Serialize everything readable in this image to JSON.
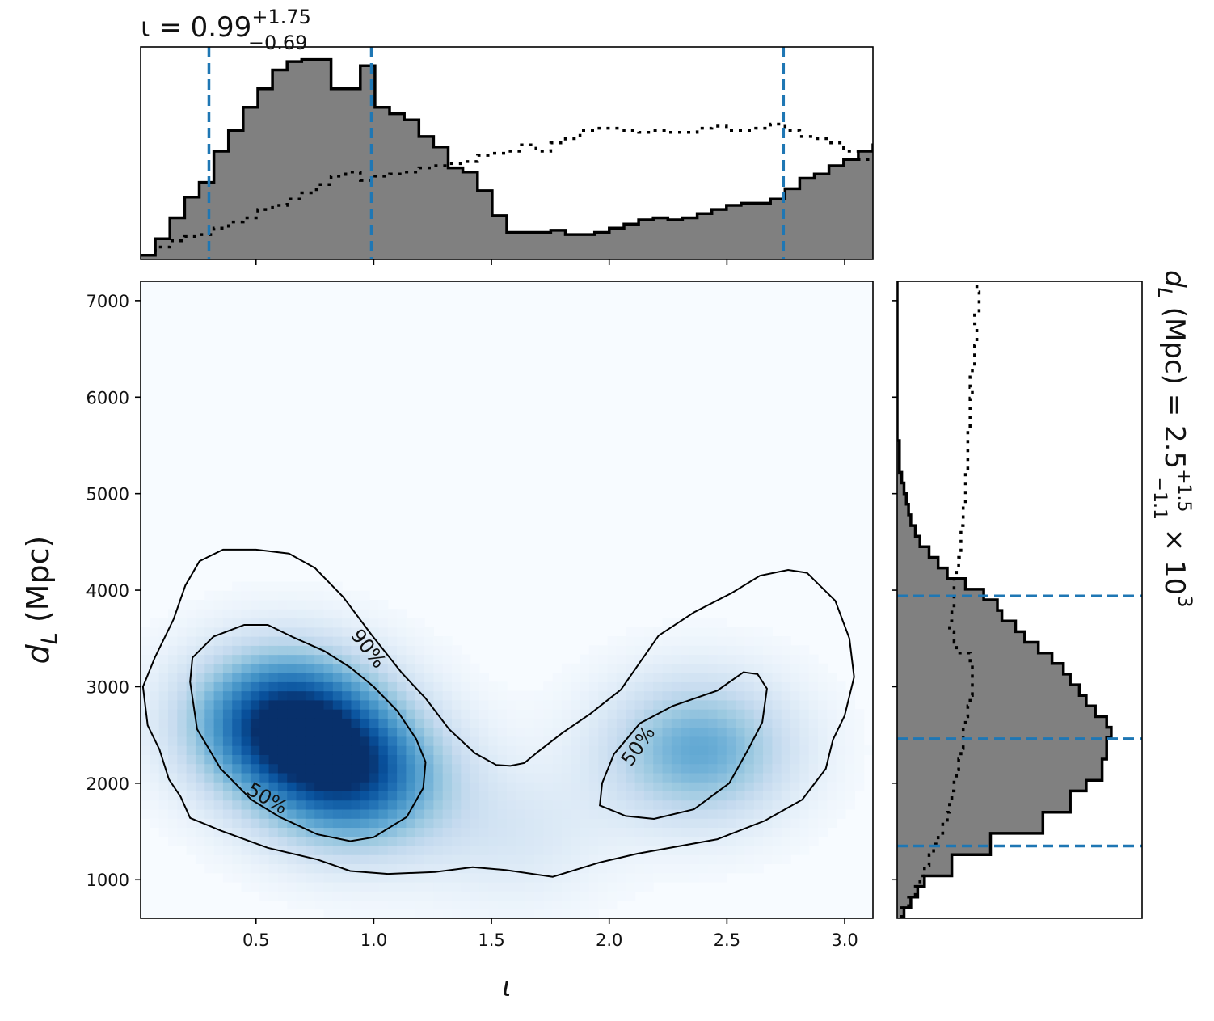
{
  "chart_data": [
    {
      "type": "heatmap",
      "xlabel": "ι",
      "ylabel": "d",
      "ylabel_sub": "L",
      "ylabel_unit": "(Mpc)",
      "xlim": [
        0.01,
        3.12
      ],
      "ylim": [
        600,
        7200
      ],
      "xticks": [
        "0.5",
        "1.0",
        "1.5",
        "2.0",
        "2.5",
        "3.0"
      ],
      "yticks": [
        "1000",
        "2000",
        "3000",
        "4000",
        "5000",
        "6000",
        "7000"
      ],
      "colormap": "Blues",
      "density_modes": [
        {
          "x": 0.62,
          "y": 2650,
          "weight": 1.0
        },
        {
          "x": 0.92,
          "y": 2050,
          "weight": 0.8
        },
        {
          "x": 2.38,
          "y": 2350,
          "weight": 0.55
        },
        {
          "x": 1.6,
          "y": 1450,
          "weight": 0.15
        }
      ],
      "contours": [
        {
          "label": "90%",
          "label_at": [
            0.98,
            3400
          ],
          "paths": [
            [
              [
                0.02,
                3000
              ],
              [
                0.07,
                3300
              ],
              [
                0.15,
                3700
              ],
              [
                0.2,
                4050
              ],
              [
                0.26,
                4300
              ],
              [
                0.36,
                4420
              ],
              [
                0.5,
                4420
              ],
              [
                0.64,
                4380
              ],
              [
                0.75,
                4230
              ],
              [
                0.87,
                3930
              ],
              [
                0.99,
                3540
              ],
              [
                1.12,
                3140
              ],
              [
                1.22,
                2880
              ],
              [
                1.32,
                2560
              ],
              [
                1.43,
                2310
              ],
              [
                1.52,
                2190
              ],
              [
                1.58,
                2180
              ],
              [
                1.64,
                2210
              ],
              [
                1.7,
                2330
              ],
              [
                1.8,
                2520
              ],
              [
                1.92,
                2720
              ],
              [
                2.05,
                2970
              ],
              [
                2.13,
                3250
              ],
              [
                2.21,
                3530
              ],
              [
                2.36,
                3770
              ],
              [
                2.52,
                3970
              ],
              [
                2.64,
                4150
              ],
              [
                2.76,
                4210
              ],
              [
                2.84,
                4180
              ],
              [
                2.96,
                3890
              ],
              [
                3.02,
                3500
              ],
              [
                3.04,
                3100
              ],
              [
                3.0,
                2700
              ],
              [
                2.95,
                2450
              ],
              [
                2.92,
                2150
              ],
              [
                2.82,
                1830
              ],
              [
                2.66,
                1610
              ],
              [
                2.46,
                1420
              ],
              [
                2.28,
                1340
              ],
              [
                2.12,
                1270
              ],
              [
                1.96,
                1180
              ],
              [
                1.76,
                1030
              ],
              [
                1.56,
                1100
              ],
              [
                1.42,
                1130
              ],
              [
                1.26,
                1080
              ],
              [
                1.06,
                1060
              ],
              [
                0.9,
                1090
              ],
              [
                0.76,
                1210
              ],
              [
                0.55,
                1330
              ],
              [
                0.35,
                1510
              ],
              [
                0.22,
                1640
              ],
              [
                0.18,
                1860
              ],
              [
                0.13,
                2040
              ],
              [
                0.09,
                2350
              ],
              [
                0.04,
                2600
              ],
              [
                0.02,
                3000
              ]
            ]
          ]
        },
        {
          "label": "50%",
          "label_at": [
            0.55,
            1850
          ],
          "paths": [
            [
              [
                0.22,
                3050
              ],
              [
                0.23,
                3300
              ],
              [
                0.32,
                3520
              ],
              [
                0.45,
                3640
              ],
              [
                0.55,
                3640
              ],
              [
                0.66,
                3510
              ],
              [
                0.79,
                3370
              ],
              [
                0.9,
                3200
              ],
              [
                1.0,
                3000
              ],
              [
                1.1,
                2750
              ],
              [
                1.18,
                2460
              ],
              [
                1.22,
                2220
              ],
              [
                1.21,
                1950
              ],
              [
                1.14,
                1650
              ],
              [
                1.0,
                1440
              ],
              [
                0.9,
                1400
              ],
              [
                0.76,
                1470
              ],
              [
                0.6,
                1650
              ],
              [
                0.48,
                1830
              ],
              [
                0.35,
                2150
              ],
              [
                0.25,
                2560
              ],
              [
                0.22,
                3050
              ]
            ],
            [
              [
                2.13,
                2620
              ],
              [
                2.27,
                2800
              ],
              [
                2.46,
                2960
              ],
              [
                2.57,
                3150
              ],
              [
                2.63,
                3130
              ],
              [
                2.67,
                2980
              ],
              [
                2.65,
                2630
              ],
              [
                2.59,
                2350
              ],
              [
                2.51,
                2000
              ],
              [
                2.36,
                1730
              ],
              [
                2.19,
                1630
              ],
              [
                2.07,
                1660
              ],
              [
                1.96,
                1770
              ],
              [
                1.97,
                2000
              ],
              [
                2.02,
                2300
              ],
              [
                2.13,
                2620
              ]
            ]
          ]
        }
      ],
      "contour_labels_rendered": [
        {
          "text": "90%",
          "x": 0.98,
          "y": 3400,
          "angle": 52
        },
        {
          "text": "50%",
          "x": 0.55,
          "y": 1850,
          "angle": 30
        },
        {
          "text": "50%",
          "x": 2.12,
          "y": 2390,
          "angle": -55
        }
      ]
    },
    {
      "type": "bar",
      "name": "iota marginal histogram",
      "title": "ι = 0.99",
      "title_sup": "+1.75",
      "title_sub": "−0.69",
      "x_edges_start": 0.01,
      "x_bin_width": 0.0622,
      "values": [
        0.02,
        0.1,
        0.2,
        0.3,
        0.37,
        0.52,
        0.62,
        0.73,
        0.82,
        0.91,
        0.95,
        0.96,
        0.96,
        0.82,
        0.82,
        0.93,
        0.73,
        0.7,
        0.67,
        0.59,
        0.54,
        0.44,
        0.42,
        0.33,
        0.21,
        0.13,
        0.13,
        0.13,
        0.14,
        0.12,
        0.12,
        0.13,
        0.15,
        0.17,
        0.19,
        0.2,
        0.19,
        0.2,
        0.22,
        0.24,
        0.26,
        0.27,
        0.27,
        0.29,
        0.34,
        0.39,
        0.41,
        0.45,
        0.48,
        0.52,
        0.55,
        0.53,
        0.5,
        0.51,
        0.52,
        0.53,
        0.5,
        0.46,
        0.42,
        0.39,
        0.28,
        0.24,
        0.2,
        0.12,
        0.08,
        0.08,
        0.04,
        0.02
      ],
      "prior_values": [
        0.02,
        0.06,
        0.09,
        0.11,
        0.12,
        0.15,
        0.18,
        0.2,
        0.24,
        0.26,
        0.29,
        0.32,
        0.36,
        0.4,
        0.42,
        0.38,
        0.4,
        0.41,
        0.42,
        0.44,
        0.45,
        0.46,
        0.47,
        0.5,
        0.51,
        0.52,
        0.55,
        0.52,
        0.56,
        0.58,
        0.62,
        0.63,
        0.63,
        0.62,
        0.61,
        0.62,
        0.61,
        0.61,
        0.63,
        0.64,
        0.62,
        0.62,
        0.63,
        0.65,
        0.62,
        0.59,
        0.58,
        0.56,
        0.52,
        0.48,
        0.48,
        0.51,
        0.5,
        0.5,
        0.46,
        0.46,
        0.44,
        0.42,
        0.39,
        0.38,
        0.34,
        0.31,
        0.27,
        0.22,
        0.17,
        0.12,
        0.07,
        0.03
      ],
      "quantiles": [
        0.3,
        0.99,
        2.74
      ],
      "xlim": [
        0.01,
        3.12
      ],
      "ylim": [
        0,
        1.0
      ]
    },
    {
      "type": "bar",
      "name": "luminosity distance marginal histogram",
      "title": "d",
      "title_sub_var": "L",
      "title_text": " (Mpc) = 2.5",
      "title_sup": "+1.5",
      "title_sub": "−1.1",
      "title_suffix": " × 10",
      "title_exp": "3",
      "orientation": "horizontal",
      "y_edges_start": 600,
      "y_bin_width": 110,
      "values": [
        0.03,
        0.06,
        0.09,
        0.12,
        0.24,
        0.24,
        0.41,
        0.41,
        0.64,
        0.64,
        0.76,
        0.76,
        0.83,
        0.9,
        0.9,
        0.92,
        0.92,
        0.94,
        0.92,
        0.87,
        0.83,
        0.8,
        0.76,
        0.73,
        0.68,
        0.62,
        0.56,
        0.52,
        0.46,
        0.44,
        0.38,
        0.3,
        0.22,
        0.18,
        0.14,
        0.1,
        0.08,
        0.06,
        0.05,
        0.04,
        0.03,
        0.02,
        0.01,
        0.01,
        0.01,
        0.0,
        0.0,
        0.0,
        0.0,
        0.0,
        0.0,
        0.0,
        0.0,
        0.0,
        0.0,
        0.0,
        0.0,
        0.0,
        0.0,
        0.0
      ],
      "prior_values": [
        0.02,
        0.05,
        0.08,
        0.1,
        0.12,
        0.14,
        0.16,
        0.18,
        0.2,
        0.22,
        0.23,
        0.24,
        0.25,
        0.26,
        0.27,
        0.28,
        0.29,
        0.29,
        0.3,
        0.31,
        0.32,
        0.33,
        0.33,
        0.33,
        0.32,
        0.26,
        0.25,
        0.23,
        0.24,
        0.25,
        0.25,
        0.25,
        0.26,
        0.27,
        0.28,
        0.28,
        0.28,
        0.29,
        0.29,
        0.3,
        0.3,
        0.3,
        0.31,
        0.31,
        0.31,
        0.31,
        0.32,
        0.32,
        0.32,
        0.33,
        0.32,
        0.33,
        0.34,
        0.34,
        0.35,
        0.35,
        0.34,
        0.36,
        0.36,
        0.35
      ],
      "quantiles": [
        1350,
        2460,
        3940
      ],
      "ylim": [
        600,
        7200
      ],
      "xlim": [
        0,
        1.0
      ]
    }
  ],
  "colors": {
    "hist_fill": "#808080",
    "hist_edge": "#000000",
    "quantile_line": "#1f77b4",
    "contour_line": "#000000"
  }
}
